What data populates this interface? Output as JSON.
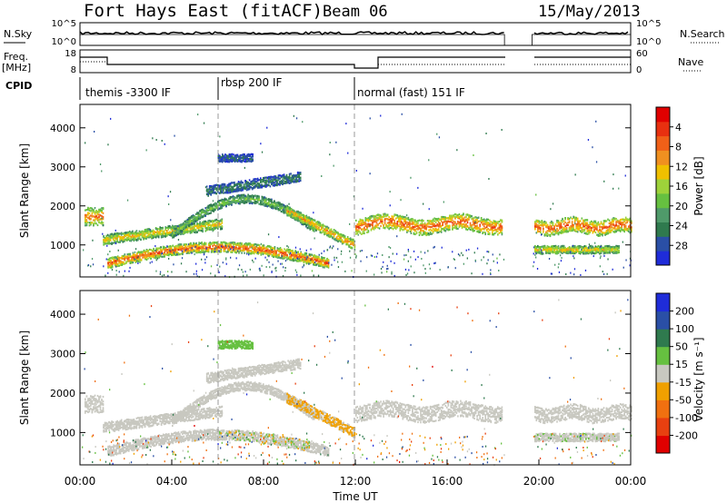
{
  "header": {
    "station": "Fort Hays East (fitACF)",
    "beam": "Beam 06",
    "date": "15/May/2013"
  },
  "panels": {
    "nsky_label": "N.Sky",
    "nsearch_label": "N.Search",
    "nsky_ticks": [
      "10^5",
      "10^0"
    ],
    "nsearch_ticks": [
      "10^5",
      "10^0"
    ],
    "freq_label_1": "Freq.",
    "freq_label_2": "[MHz]",
    "freq_ticks": [
      "18",
      "8"
    ],
    "nave_label": "Nave",
    "nave_ticks": [
      "60",
      "0"
    ],
    "cpid_label": "CPID",
    "cpid_modes": [
      "themis -3300 IF",
      "rbsp 200 IF",
      "normal (fast) 151 IF"
    ]
  },
  "colors": {
    "power": [
      "#1f2cd9",
      "#2a4fa6",
      "#2f7a4e",
      "#4f9a6a",
      "#66c040",
      "#9ed23a",
      "#f0c000",
      "#f09020",
      "#f06018",
      "#e83010",
      "#e00000"
    ],
    "velocity": [
      "#1f2cd9",
      "#2a4fa6",
      "#2f7a4e",
      "#66c040",
      "#c8c8c0",
      "#f0a000",
      "#f07010",
      "#e84010",
      "#e00000"
    ]
  },
  "chart_data": [
    {
      "type": "heatmap",
      "name": "power",
      "ylabel": "Slant Range [km]",
      "xlim": [
        0,
        24
      ],
      "ylim": [
        180,
        4600
      ],
      "yticks": [
        "1000",
        "2000",
        "3000",
        "4000"
      ],
      "colorbar_label": "Power [dB]",
      "colorbar_ticks": [
        "4",
        "8",
        "12",
        "16",
        "20",
        "24",
        "28"
      ],
      "clim": [
        0,
        32
      ]
    },
    {
      "type": "heatmap",
      "name": "velocity",
      "ylabel": "Slant Range [km]",
      "xlabel": "Time UT",
      "xlim": [
        0,
        24
      ],
      "ylim": [
        180,
        4600
      ],
      "xticks": [
        "00:00",
        "04:00",
        "08:00",
        "12:00",
        "16:00",
        "20:00",
        "00:00"
      ],
      "yticks": [
        "1000",
        "2000",
        "3000",
        "4000"
      ],
      "colorbar_label": "Velocity [m s⁻¹]",
      "colorbar_ticks": [
        "200",
        "100",
        "50",
        "15",
        "-15",
        "-50",
        "-100",
        "-200"
      ],
      "clim": [
        -250,
        250
      ]
    }
  ]
}
